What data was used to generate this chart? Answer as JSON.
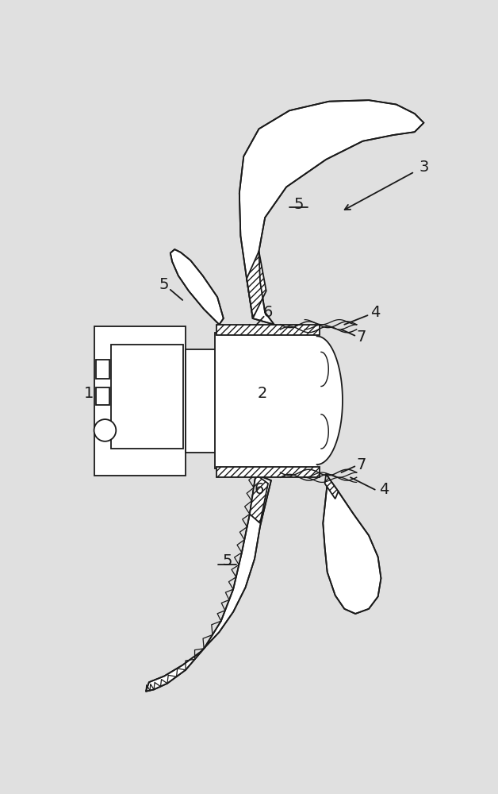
{
  "bg_color": "#e0e0e0",
  "line_color": "#1a1a1a",
  "fig_width": 6.28,
  "fig_height": 10.0
}
